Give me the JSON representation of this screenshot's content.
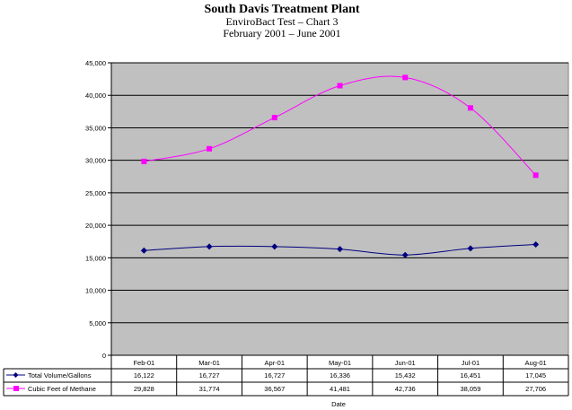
{
  "chart_data": {
    "type": "line",
    "title": "South Davis Treatment Plant",
    "subtitle": [
      "EnviroBact Test – Chart 3",
      "February 2001 – June 2001"
    ],
    "xlabel": "Date",
    "ylabel": "",
    "ylim": [
      0,
      45000
    ],
    "yticks": [
      0,
      5000,
      10000,
      15000,
      20000,
      25000,
      30000,
      35000,
      40000,
      45000
    ],
    "ytick_labels": [
      "0",
      "5,000",
      "10,000",
      "15,000",
      "20,000",
      "25,000",
      "30,000",
      "35,000",
      "40,000",
      "45,000"
    ],
    "grid": true,
    "legend": "data-table",
    "categories": [
      "Feb-01",
      "Mar-01",
      "Apr-01",
      "May-01",
      "Jun-01",
      "Jul-01",
      "Aug-01"
    ],
    "series": [
      {
        "name": "Total Volume/Gallons",
        "color": "#000080",
        "marker": "diamond",
        "values": [
          16122,
          16727,
          16727,
          16336,
          15432,
          16451,
          17045
        ],
        "labels": [
          "16,122",
          "16,727",
          "16,727",
          "16,336",
          "15,432",
          "16,451",
          "17,045"
        ]
      },
      {
        "name": "Cubic Feet of Methane",
        "color": "#ff00ff",
        "marker": "square",
        "values": [
          29828,
          31774,
          36567,
          41481,
          42736,
          38059,
          27706
        ],
        "labels": [
          "29,828",
          "31,774",
          "36,567",
          "41,481",
          "42,736",
          "38,059",
          "27,706"
        ]
      }
    ],
    "plot_bg": "#c0c0c0"
  }
}
